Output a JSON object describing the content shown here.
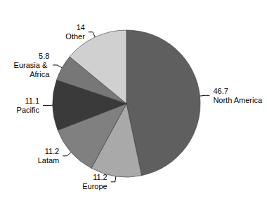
{
  "chart_data": {
    "type": "pie",
    "categories": [
      "North America",
      "Europe",
      "Latam",
      "Pacific",
      "Eurasia & Africa",
      "Other"
    ],
    "values": [
      46.7,
      11.2,
      11.2,
      11.1,
      5.8,
      14
    ],
    "colors": [
      "#5f5f5f",
      "#a9a9a9",
      "#808080",
      "#3a3a3a",
      "#777777",
      "#d0d0d0"
    ],
    "data_labels": true
  }
}
